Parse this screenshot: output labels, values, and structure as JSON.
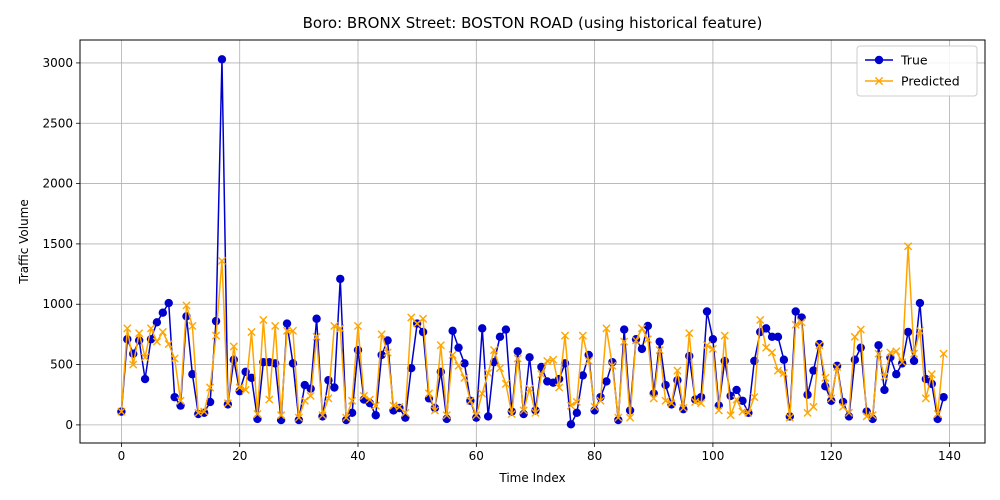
{
  "chart_data": {
    "type": "line",
    "title": "Boro: BRONX Street: BOSTON ROAD (using historical feature)",
    "xlabel": "Time Index",
    "ylabel": "Traffic Volume",
    "xlim": [
      -7,
      146
    ],
    "ylim": [
      -150,
      3190
    ],
    "xticks": [
      0,
      20,
      40,
      60,
      80,
      100,
      120,
      140
    ],
    "yticks": [
      0,
      500,
      1000,
      1500,
      2000,
      2500,
      3000
    ],
    "grid": true,
    "legend_position": "top-right",
    "x": [
      0,
      1,
      2,
      3,
      4,
      5,
      6,
      7,
      8,
      9,
      10,
      11,
      12,
      13,
      14,
      15,
      16,
      17,
      18,
      19,
      20,
      21,
      22,
      23,
      24,
      25,
      26,
      27,
      28,
      29,
      30,
      31,
      32,
      33,
      34,
      35,
      36,
      37,
      38,
      39,
      40,
      41,
      42,
      43,
      44,
      45,
      46,
      47,
      48,
      49,
      50,
      51,
      52,
      53,
      54,
      55,
      56,
      57,
      58,
      59,
      60,
      61,
      62,
      63,
      64,
      65,
      66,
      67,
      68,
      69,
      70,
      71,
      72,
      73,
      74,
      75,
      76,
      77,
      78,
      79,
      80,
      81,
      82,
      83,
      84,
      85,
      86,
      87,
      88,
      89,
      90,
      91,
      92,
      93,
      94,
      95,
      96,
      97,
      98,
      99,
      100,
      101,
      102,
      103,
      104,
      105,
      106,
      107,
      108,
      109,
      110,
      111,
      112,
      113,
      114,
      115,
      116,
      117,
      118,
      119,
      120,
      121,
      122,
      123,
      124,
      125,
      126,
      127,
      128,
      129,
      130,
      131,
      132,
      133,
      134,
      135,
      136,
      137,
      138,
      139
    ],
    "series": [
      {
        "name": "True",
        "color": "#0000cc",
        "marker": "circle",
        "values": [
          110,
          710,
          590,
          700,
          380,
          710,
          850,
          930,
          1010,
          230,
          160,
          900,
          420,
          90,
          100,
          190,
          860,
          3030,
          170,
          540,
          280,
          440,
          390,
          50,
          520,
          520,
          510,
          40,
          840,
          510,
          40,
          330,
          300,
          880,
          70,
          370,
          310,
          1210,
          40,
          100,
          620,
          210,
          180,
          80,
          580,
          700,
          120,
          140,
          60,
          470,
          840,
          770,
          220,
          140,
          440,
          50,
          780,
          640,
          510,
          200,
          60,
          800,
          70,
          520,
          730,
          790,
          110,
          610,
          90,
          560,
          120,
          480,
          360,
          350,
          380,
          510,
          5,
          100,
          410,
          580,
          120,
          230,
          360,
          520,
          40,
          790,
          120,
          710,
          630,
          820,
          260,
          690,
          330,
          170,
          370,
          130,
          570,
          210,
          230,
          940,
          710,
          160,
          530,
          240,
          290,
          200,
          100,
          530,
          770,
          800,
          730,
          730,
          540,
          70,
          940,
          890,
          250,
          450,
          670,
          320,
          200,
          490,
          190,
          70,
          540,
          640,
          110,
          50,
          660,
          290,
          560,
          420,
          510,
          770,
          530,
          1010,
          380,
          340,
          50,
          230
        ]
      },
      {
        "name": "Predicted",
        "color": "#ffa500",
        "marker": "x",
        "values": [
          110,
          800,
          500,
          760,
          560,
          800,
          690,
          770,
          670,
          550,
          200,
          990,
          820,
          100,
          110,
          310,
          740,
          1360,
          180,
          650,
          310,
          290,
          770,
          90,
          870,
          210,
          820,
          80,
          780,
          780,
          60,
          200,
          240,
          730,
          80,
          220,
          820,
          800,
          60,
          200,
          820,
          240,
          210,
          160,
          750,
          600,
          160,
          150,
          100,
          890,
          840,
          880,
          260,
          120,
          660,
          80,
          580,
          490,
          390,
          200,
          80,
          260,
          430,
          620,
          470,
          340,
          90,
          550,
          120,
          300,
          100,
          420,
          530,
          540,
          310,
          740,
          160,
          190,
          740,
          530,
          150,
          200,
          800,
          490,
          60,
          690,
          60,
          700,
          800,
          710,
          220,
          620,
          200,
          180,
          450,
          140,
          760,
          190,
          180,
          660,
          630,
          120,
          740,
          80,
          210,
          110,
          100,
          230,
          870,
          640,
          600,
          450,
          430,
          60,
          830,
          850,
          100,
          150,
          660,
          390,
          220,
          480,
          150,
          100,
          730,
          790,
          70,
          80,
          590,
          400,
          600,
          610,
          520,
          1480,
          590,
          780,
          220,
          420,
          90,
          590
        ]
      }
    ]
  }
}
